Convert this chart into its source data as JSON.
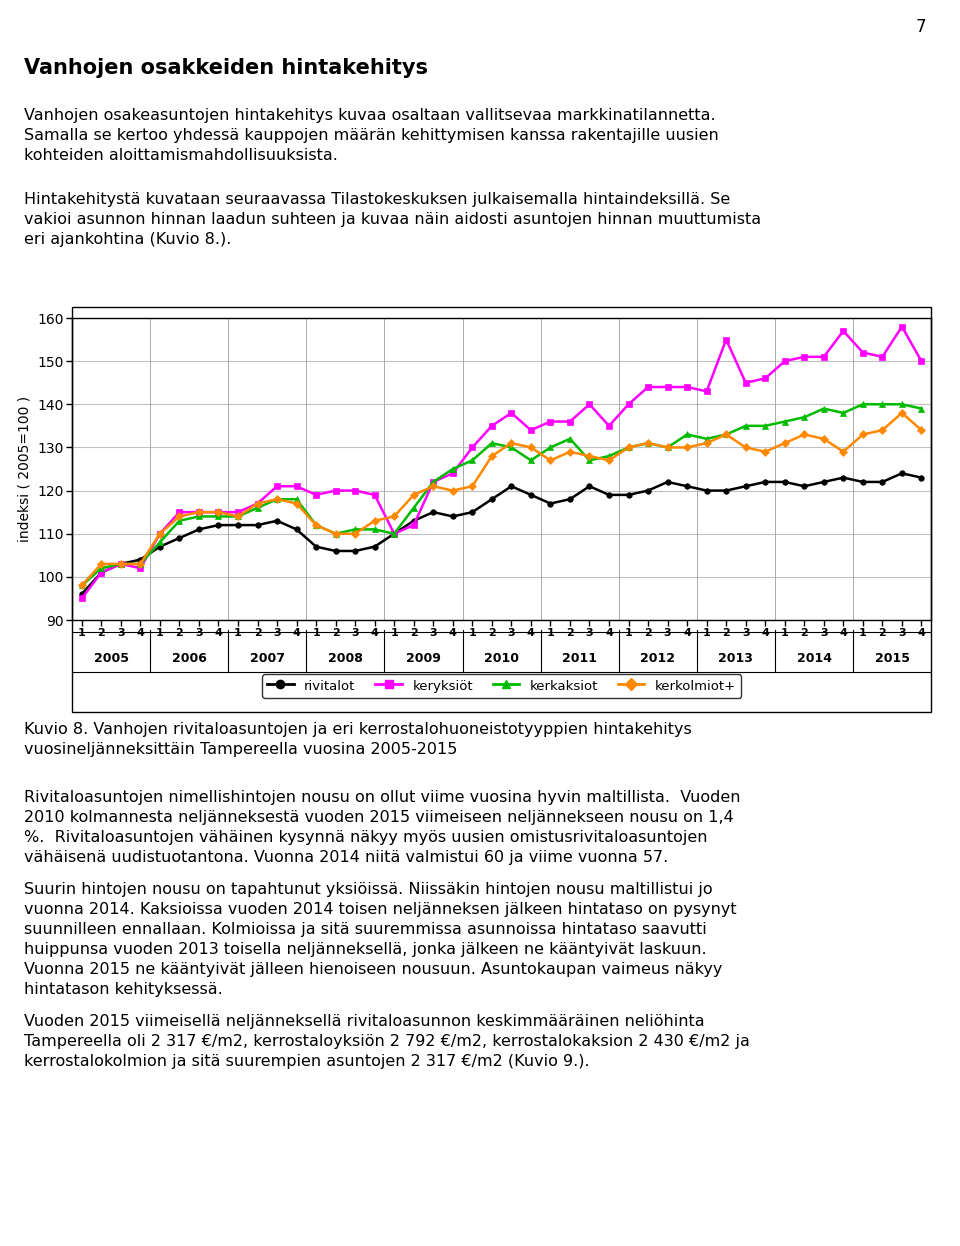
{
  "ylabel": "indeksi ( 2005=100 )",
  "ylim": [
    90,
    160
  ],
  "yticks": [
    90,
    100,
    110,
    120,
    130,
    140,
    150,
    160
  ],
  "years": [
    "2005",
    "2006",
    "2007",
    "2008",
    "2009",
    "2010",
    "2011",
    "2012",
    "2013",
    "2014",
    "2015"
  ],
  "series": {
    "rivitalot": {
      "color": "#000000",
      "marker": "o",
      "label": "rivitalot",
      "data": [
        96,
        101,
        103,
        104,
        107,
        109,
        111,
        112,
        112,
        112,
        113,
        111,
        107,
        106,
        106,
        107,
        110,
        113,
        115,
        114,
        115,
        118,
        121,
        119,
        117,
        118,
        121,
        119,
        119,
        120,
        122,
        121,
        120,
        120,
        121,
        122,
        122,
        121,
        122,
        123,
        122,
        122,
        124,
        123
      ]
    },
    "keryksiöt": {
      "color": "#ff00ff",
      "marker": "s",
      "label": "keryksiöt",
      "data": [
        95,
        101,
        103,
        102,
        110,
        115,
        115,
        115,
        115,
        117,
        121,
        121,
        119,
        120,
        120,
        119,
        110,
        112,
        122,
        124,
        130,
        135,
        138,
        134,
        136,
        136,
        140,
        135,
        140,
        144,
        144,
        144,
        143,
        155,
        145,
        146,
        150,
        151,
        151,
        157,
        152,
        151,
        158,
        150
      ]
    },
    "kerkaksiot": {
      "color": "#00bb00",
      "marker": "^",
      "label": "kerkaksiot",
      "data": [
        98,
        102,
        103,
        103,
        108,
        113,
        114,
        114,
        114,
        116,
        118,
        118,
        112,
        110,
        111,
        111,
        110,
        116,
        122,
        125,
        127,
        131,
        130,
        127,
        130,
        132,
        127,
        128,
        130,
        131,
        130,
        133,
        132,
        133,
        135,
        135,
        136,
        137,
        139,
        138,
        140,
        140,
        140,
        139
      ]
    },
    "kerkolmiot+": {
      "color": "#ff8800",
      "marker": "D",
      "label": "kerkolmiot+",
      "data": [
        98,
        103,
        103,
        103,
        110,
        114,
        115,
        115,
        114,
        117,
        118,
        117,
        112,
        110,
        110,
        113,
        114,
        119,
        121,
        120,
        121,
        128,
        131,
        130,
        127,
        129,
        128,
        127,
        130,
        131,
        130,
        130,
        131,
        133,
        130,
        129,
        131,
        133,
        132,
        129,
        133,
        134,
        138,
        134
      ]
    }
  },
  "background_color": "#ffffff",
  "grid_color": "#c0c0c0",
  "title_text": "Vanhojen osakkeiden hintakehitys",
  "page_number": "7",
  "text_blocks": [
    {
      "text": "Vanhojen osakeasuntojen hintakehitys kuvaa osaltaan vallitsevaa markkinatilannetta.",
      "bold": false
    },
    {
      "text": "Samalla se kertoo yhdessä kauppojen määrän kehittymisen kanssa rakentajille uusien",
      "bold": false
    },
    {
      "text": "kohteiden aloittamismahdollisuuksista.",
      "bold": false
    }
  ],
  "text_blocks2": [
    {
      "text": "Hintakehitystä kuvataan seuraavassa Tilastokeskuksen julkaisemalla hintaindeksillä. Se",
      "bold": false
    },
    {
      "text": "vakioi asunnon hinnan laadun suhteen ja kuvaa näin aidosti asuntojen hinnan muuttumista",
      "bold": false
    },
    {
      "text": "eri ajankohtina (Kuvio 8.).",
      "bold": false
    }
  ],
  "caption_line1": "Kuvio 8. Vanhojen rivitaloasuntojen ja eri kerrostalohuoneistotyyppien hintakehitys",
  "caption_line2": "vuosineljänneksittäin Tampereella vuosina 2005-2015",
  "body_paragraphs": [
    [
      "Rivitaloasuntojen nimellishintojen nousu on ollut viime vuosina hyvin maltillista.  Vuoden",
      "2010 kolmannesta neljänneksestä vuoden 2015 viimeiseen neljännekseen nousu on 1,4",
      "%.  Rivitaloasuntojen vähäinen kysynnä näkyy myös uusien omistusrivitaloasuntojen",
      "vähäisenä uudistuotantona. Vuonna 2014 niitä valmistui 60 ja viime vuonna 57."
    ],
    [
      "Suurin hintojen nousu on tapahtunut yksiöissä. Niissäkin hintojen nousu maltillistui jo",
      "vuonna 2014. Kaksioissa vuoden 2014 toisen neljänneksen jälkeen hintataso on pysynyt",
      "suunnilleen ennallaan. Kolmioissa ja sitä suuremmissa asunnoissa hintataso saavutti",
      "huippunsa vuoden 2013 toisella neljänneksellä, jonka jälkeen ne kääntyivät laskuun.",
      "Vuonna 2015 ne kääntyivät jälleen hienoiseen nousuun. Asuntokaupan vaimeus näkyy",
      "hintatason kehityksessä."
    ],
    [
      "Vuoden 2015 viimeisellä neljänneksellä rivitaloasunnon keskimmääräinen neliöhinta",
      "Tampereella oli 2 317 €/m2, kerrostaloyksiön 2 792 €/m2, kerrostalokaksion 2 430 €/m2 ja",
      "kerrostalokolmion ja sitä suurempien asuntojen 2 317 €/m2 (Kuvio 9.)."
    ]
  ]
}
